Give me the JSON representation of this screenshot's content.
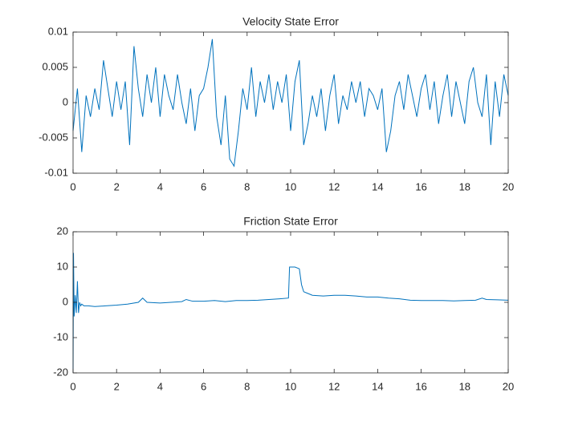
{
  "chart_data": [
    {
      "type": "line",
      "title": "Velocity State Error",
      "x": [
        0,
        0.2,
        0.4,
        0.6,
        0.8,
        1,
        1.2,
        1.4,
        1.6,
        1.8,
        2,
        2.2,
        2.4,
        2.6,
        2.8,
        3,
        3.2,
        3.4,
        3.6,
        3.8,
        4,
        4.2,
        4.4,
        4.6,
        4.8,
        5,
        5.2,
        5.4,
        5.6,
        5.8,
        6,
        6.2,
        6.4,
        6.6,
        6.8,
        7,
        7.2,
        7.4,
        7.6,
        7.8,
        8,
        8.2,
        8.4,
        8.6,
        8.8,
        9,
        9.2,
        9.4,
        9.6,
        9.8,
        10,
        10.2,
        10.4,
        10.6,
        10.8,
        11,
        11.2,
        11.4,
        11.6,
        11.8,
        12,
        12.2,
        12.4,
        12.6,
        12.8,
        13,
        13.2,
        13.4,
        13.6,
        13.8,
        14,
        14.2,
        14.4,
        14.6,
        14.8,
        15,
        15.2,
        15.4,
        15.6,
        15.8,
        16,
        16.2,
        16.4,
        16.6,
        16.8,
        17,
        17.2,
        17.4,
        17.6,
        17.8,
        18,
        18.2,
        18.4,
        18.6,
        18.8,
        19,
        19.2,
        19.4,
        19.6,
        19.8,
        20
      ],
      "series": [
        {
          "color": "#0072bd",
          "values": [
            -0.004,
            0.002,
            -0.007,
            0.001,
            -0.002,
            0.002,
            -0.001,
            0.006,
            0.002,
            -0.002,
            0.003,
            -0.001,
            0.003,
            -0.006,
            0.008,
            0.002,
            -0.002,
            0.004,
            0,
            0.005,
            -0.002,
            0.004,
            0.001,
            -0.001,
            0.004,
            0,
            -0.003,
            0.002,
            -0.004,
            0.001,
            0.002,
            0.005,
            0.009,
            -0.002,
            -0.006,
            0.001,
            -0.008,
            -0.009,
            -0.004,
            0.002,
            -0.001,
            0.005,
            -0.002,
            0.003,
            0,
            0.004,
            -0.001,
            0.003,
            0,
            0.004,
            -0.004,
            0.003,
            0.006,
            -0.006,
            -0.003,
            0.001,
            -0.002,
            0.002,
            -0.004,
            0.001,
            0.004,
            -0.003,
            0.001,
            -0.001,
            0.003,
            0,
            0.003,
            -0.002,
            0.002,
            0.001,
            -0.001,
            0.002,
            -0.007,
            -0.004,
            0.001,
            0.003,
            -0.001,
            0.004,
            0.001,
            -0.002,
            0.002,
            0.004,
            -0.001,
            0.003,
            -0.003,
            0.001,
            0.004,
            -0.002,
            0.003,
            0,
            -0.003,
            0.003,
            0.005,
            0,
            -0.002,
            0.004,
            -0.006,
            0.003,
            -0.002,
            0.004,
            0.001
          ]
        }
      ],
      "xlim": [
        0,
        20
      ],
      "xticks": [
        0,
        2,
        4,
        6,
        8,
        10,
        12,
        14,
        16,
        18,
        20
      ],
      "ylim": [
        -0.01,
        0.01
      ],
      "yticks": [
        -0.01,
        -0.005,
        0,
        0.005,
        0.01
      ]
    },
    {
      "type": "line",
      "title": "Friction State Error",
      "x": [
        0,
        0.02,
        0.05,
        0.1,
        0.15,
        0.2,
        0.25,
        0.3,
        0.35,
        0.4,
        0.5,
        0.7,
        1,
        1.5,
        2,
        2.5,
        3,
        3.2,
        3.4,
        4,
        4.5,
        5,
        5.2,
        5.5,
        6,
        6.5,
        7,
        7.5,
        8,
        8.5,
        9,
        9.5,
        9.9,
        9.95,
        10,
        10.2,
        10.4,
        10.5,
        10.6,
        10.8,
        11,
        11.5,
        12,
        12.5,
        13,
        13.5,
        14,
        14.5,
        15,
        15.5,
        16,
        16.5,
        17,
        17.5,
        18,
        18.5,
        18.8,
        19,
        19.5,
        20
      ],
      "series": [
        {
          "color": "#0072bd",
          "values": [
            -20,
            14,
            -4,
            2,
            -3,
            6,
            -3,
            0,
            -1,
            -0.5,
            -1,
            -1,
            -1.2,
            -1,
            -0.8,
            -0.5,
            0,
            1.2,
            0,
            -0.2,
            0,
            0.2,
            0.8,
            0.3,
            0.3,
            0.5,
            0.2,
            0.5,
            0.5,
            0.6,
            0.8,
            1,
            1.2,
            10,
            10,
            10,
            9.5,
            5,
            3,
            2.5,
            2,
            1.8,
            2,
            2,
            1.8,
            1.5,
            1.5,
            1.2,
            1,
            0.6,
            0.5,
            0.5,
            0.5,
            0.4,
            0.5,
            0.6,
            1.2,
            0.8,
            0.7,
            0.6
          ]
        }
      ],
      "xlim": [
        0,
        20
      ],
      "xticks": [
        0,
        2,
        4,
        6,
        8,
        10,
        12,
        14,
        16,
        18,
        20
      ],
      "ylim": [
        -20,
        20
      ],
      "yticks": [
        -20,
        -10,
        0,
        10,
        20
      ]
    }
  ]
}
